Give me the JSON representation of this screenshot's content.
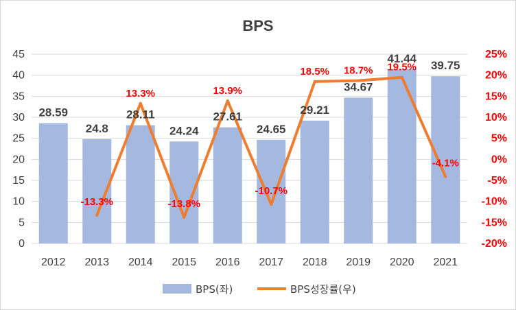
{
  "chart_data": {
    "type": "bar",
    "title": "BPS",
    "categories": [
      "2012",
      "2013",
      "2014",
      "2015",
      "2016",
      "2017",
      "2018",
      "2019",
      "2020",
      "2021"
    ],
    "series": [
      {
        "name": "BPS(좌)",
        "type": "bar",
        "axis": "left",
        "values": [
          28.59,
          24.8,
          28.11,
          24.24,
          27.61,
          24.65,
          29.21,
          34.67,
          41.44,
          39.75
        ],
        "labels": [
          "28.59",
          "24.8",
          "28.11",
          "24.24",
          "27.61",
          "24.65",
          "29.21",
          "34.67",
          "41.44",
          "39.75"
        ],
        "color": "#a5b8e0"
      },
      {
        "name": "BPS성장률(우)",
        "type": "line",
        "axis": "right",
        "values": [
          null,
          -13.3,
          13.3,
          -13.8,
          13.9,
          -10.7,
          18.5,
          18.7,
          19.5,
          -4.1
        ],
        "labels": [
          "",
          "-13.3%",
          "13.3%",
          "-13.8%",
          "13.9%",
          "-10.7%",
          "18.5%",
          "18.7%",
          "19.5%",
          "-4.1%"
        ],
        "color": "#ed7d31"
      }
    ],
    "y_left": {
      "min": 0,
      "max": 45,
      "step": 5,
      "ticks": [
        "0",
        "5",
        "10",
        "15",
        "20",
        "25",
        "30",
        "35",
        "40",
        "45"
      ]
    },
    "y_right": {
      "min": -20,
      "max": 25,
      "step": 5,
      "ticks": [
        "-20%",
        "-15%",
        "-10%",
        "-5%",
        "0%",
        "5%",
        "10%",
        "15%",
        "20%",
        "25%"
      ],
      "color": "#ff0000"
    },
    "grid": true,
    "legend_position": "bottom"
  }
}
